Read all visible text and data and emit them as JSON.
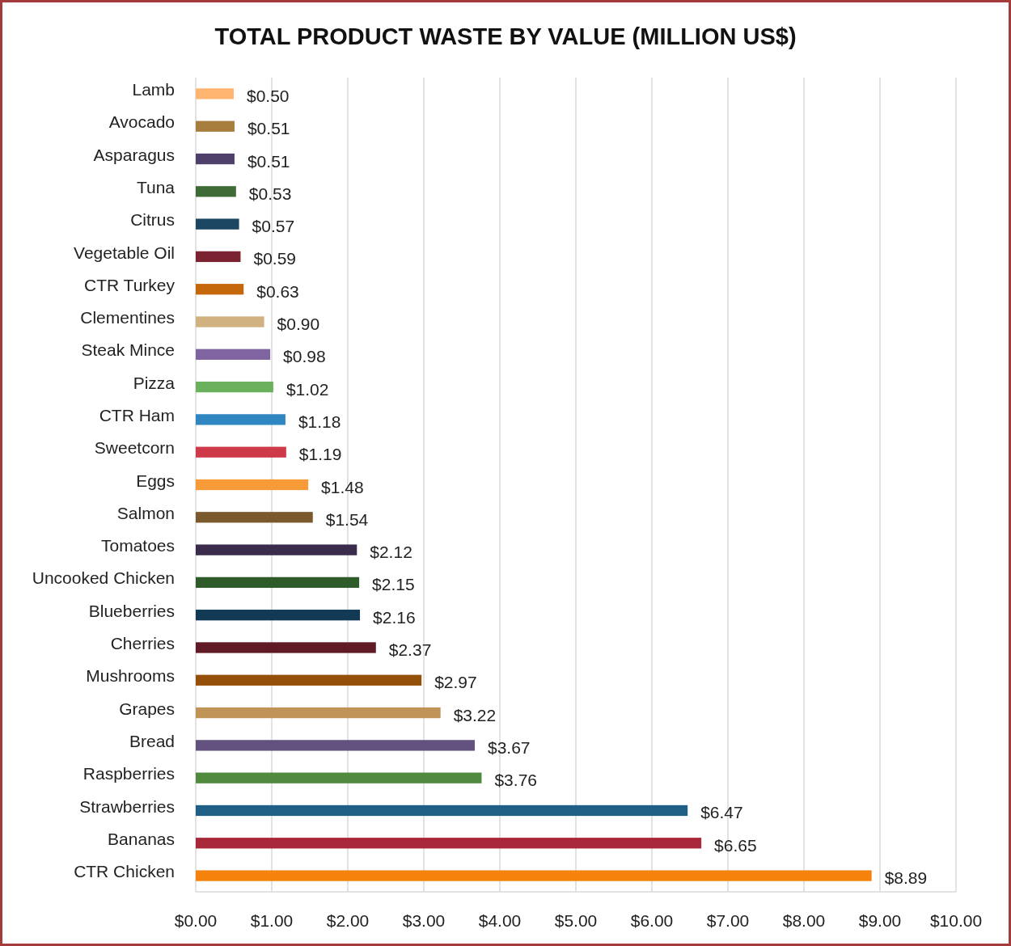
{
  "chart_data": {
    "type": "bar",
    "orientation": "horizontal",
    "title": "TOTAL PRODUCT WASTE BY VALUE (MILLION US$)",
    "categories": [
      "Lamb",
      "Avocado",
      "Asparagus",
      "Tuna",
      "Citrus",
      "Vegetable Oil",
      "CTR Turkey",
      "Clementines",
      "Steak Mince",
      "Pizza",
      "CTR Ham",
      "Sweetcorn",
      "Eggs",
      "Salmon",
      "Tomatoes",
      "Uncooked Chicken",
      "Blueberries",
      "Cherries",
      "Mushrooms",
      "Grapes",
      "Bread",
      "Raspberries",
      "Strawberries",
      "Bananas",
      "CTR Chicken"
    ],
    "values": [
      0.5,
      0.51,
      0.51,
      0.53,
      0.57,
      0.59,
      0.63,
      0.9,
      0.98,
      1.02,
      1.18,
      1.19,
      1.48,
      1.54,
      2.12,
      2.15,
      2.16,
      2.37,
      2.97,
      3.22,
      3.67,
      3.76,
      6.47,
      6.65,
      8.89
    ],
    "colors": [
      "#ffb570",
      "#a67d3d",
      "#4e3f6b",
      "#3e6b36",
      "#1a4661",
      "#7b2330",
      "#c4680b",
      "#d2b181",
      "#8064a2",
      "#6bb15d",
      "#2f86c0",
      "#cf3a4a",
      "#f79a38",
      "#7a5a2c",
      "#3b2c4d",
      "#2f5a2a",
      "#123a55",
      "#601a25",
      "#944f08",
      "#bf9456",
      "#63517f",
      "#4f8a3e",
      "#1f5f86",
      "#a8283a",
      "#f4820b"
    ],
    "value_labels": [
      "$0.50",
      "$0.51",
      "$0.51",
      "$0.53",
      "$0.57",
      "$0.59",
      "$0.63",
      "$0.90",
      "$0.98",
      "$1.02",
      "$1.18",
      "$1.19",
      "$1.48",
      "$1.54",
      "$2.12",
      "$2.15",
      "$2.16",
      "$2.37",
      "$2.97",
      "$3.22",
      "$3.67",
      "$3.76",
      "$6.47",
      "$6.65",
      "$8.89"
    ],
    "xlim": [
      0,
      10
    ],
    "xticks": [
      {
        "value": 0,
        "label": "$0.00"
      },
      {
        "value": 1,
        "label": "$1.00"
      },
      {
        "value": 2,
        "label": "$2.00"
      },
      {
        "value": 3,
        "label": "$3.00"
      },
      {
        "value": 4,
        "label": "$4.00"
      },
      {
        "value": 5,
        "label": "$5.00"
      },
      {
        "value": 6,
        "label": "$6.00"
      },
      {
        "value": 7,
        "label": "$7.00"
      },
      {
        "value": 8,
        "label": "$8.00"
      },
      {
        "value": 9,
        "label": "$9.00"
      },
      {
        "value": 10,
        "label": "$10.00"
      }
    ],
    "grid": "x"
  }
}
